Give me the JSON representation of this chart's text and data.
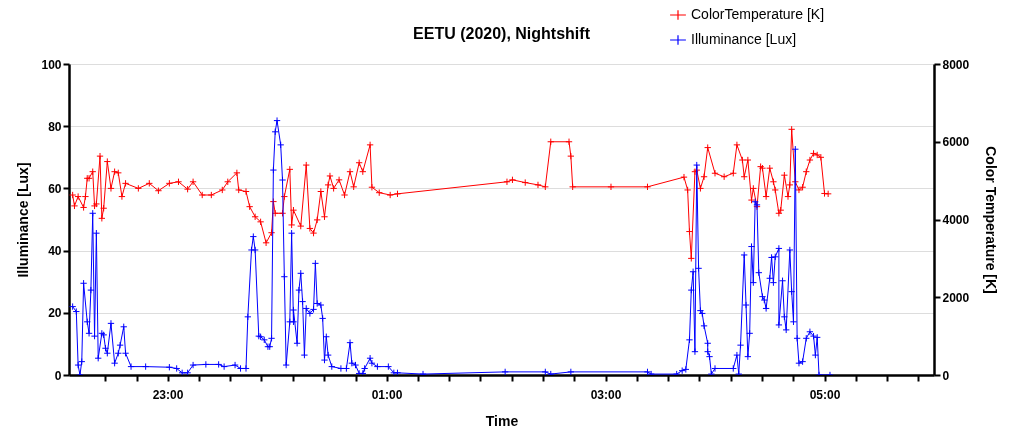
{
  "chart_data": {
    "type": "line",
    "title": "EETU (2020), Nightshift",
    "xlabel": "Time",
    "ylabel": "Illuminance [Lux]",
    "y2label": "Color Temperature [K]",
    "xlim": [
      "2020-01-01T22:06",
      "2020-01-02T06:00"
    ],
    "xticks": [
      {
        "value": "2020-01-01T22:26",
        "label": null
      },
      {
        "value": "2020-01-01T22:43",
        "label": null
      },
      {
        "value": "2020-01-01T23:00",
        "label": "23:00"
      },
      {
        "value": "2020-01-01T23:17",
        "label": null
      },
      {
        "value": "2020-01-01T23:34",
        "label": null
      },
      {
        "value": "2020-01-01T23:51",
        "label": null
      },
      {
        "value": "2020-01-02T00:09",
        "label": null
      },
      {
        "value": "2020-01-02T00:26",
        "label": null
      },
      {
        "value": "2020-01-02T00:43",
        "label": null
      },
      {
        "value": "2020-01-02T01:00",
        "label": "01:00"
      },
      {
        "value": "2020-01-02T01:17",
        "label": null
      },
      {
        "value": "2020-01-02T01:34",
        "label": null
      },
      {
        "value": "2020-01-02T01:51",
        "label": null
      },
      {
        "value": "2020-01-02T02:09",
        "label": null
      },
      {
        "value": "2020-01-02T02:26",
        "label": null
      },
      {
        "value": "2020-01-02T02:43",
        "label": null
      },
      {
        "value": "2020-01-02T03:00",
        "label": "03:00"
      },
      {
        "value": "2020-01-02T03:17",
        "label": null
      },
      {
        "value": "2020-01-02T03:34",
        "label": null
      },
      {
        "value": "2020-01-02T03:51",
        "label": null
      },
      {
        "value": "2020-01-02T04:09",
        "label": null
      },
      {
        "value": "2020-01-02T04:26",
        "label": null
      },
      {
        "value": "2020-01-02T04:43",
        "label": null
      },
      {
        "value": "2020-01-02T05:00",
        "label": "05:00"
      },
      {
        "value": "2020-01-02T05:17",
        "label": null
      },
      {
        "value": "2020-01-02T05:34",
        "label": null
      },
      {
        "value": "2020-01-02T05:51",
        "label": null
      }
    ],
    "ylim": [
      0,
      100
    ],
    "yticks": [
      0,
      20,
      40,
      60,
      80,
      100
    ],
    "y2lim": [
      0,
      8000
    ],
    "y2ticks": [
      0,
      2000,
      4000,
      6000,
      8000
    ],
    "grid": "y",
    "legend": "top right",
    "marker": "cross",
    "line_style": "solid",
    "series": [
      {
        "name": "ColorTemperature [K]",
        "color": "#ff0000",
        "axis": "y2",
        "x": [
          "2020-01-01T22:08",
          "2020-01-01T22:09",
          "2020-01-01T22:11",
          "2020-01-01T22:14",
          "2020-01-01T22:15",
          "2020-01-01T22:16",
          "2020-01-01T22:17",
          "2020-01-01T22:19",
          "2020-01-01T22:20",
          "2020-01-01T22:21",
          "2020-01-01T22:23",
          "2020-01-01T22:24",
          "2020-01-01T22:25",
          "2020-01-01T22:27",
          "2020-01-01T22:29",
          "2020-01-01T22:31",
          "2020-01-01T22:33",
          "2020-01-01T22:35",
          "2020-01-01T22:37",
          "2020-01-01T22:44",
          "2020-01-01T22:50",
          "2020-01-01T22:55",
          "2020-01-01T23:01",
          "2020-01-01T23:06",
          "2020-01-01T23:11",
          "2020-01-01T23:14",
          "2020-01-01T23:19",
          "2020-01-01T23:24",
          "2020-01-01T23:30",
          "2020-01-01T23:33",
          "2020-01-01T23:38",
          "2020-01-01T23:39",
          "2020-01-01T23:43",
          "2020-01-01T23:45",
          "2020-01-01T23:48",
          "2020-01-01T23:51",
          "2020-01-01T23:54",
          "2020-01-01T23:57",
          "2020-01-01T23:58",
          "2020-01-01T23:59",
          "2020-01-02T00:03",
          "2020-01-02T00:04",
          "2020-01-02T00:07",
          "2020-01-02T00:08",
          "2020-01-02T00:09",
          "2020-01-02T00:13",
          "2020-01-02T00:16",
          "2020-01-02T00:18",
          "2020-01-02T00:20",
          "2020-01-02T00:22",
          "2020-01-02T00:24",
          "2020-01-02T00:26",
          "2020-01-02T00:28",
          "2020-01-02T00:29",
          "2020-01-02T00:31",
          "2020-01-02T00:34",
          "2020-01-02T00:37",
          "2020-01-02T00:40",
          "2020-01-02T00:42",
          "2020-01-02T00:45",
          "2020-01-02T00:47",
          "2020-01-02T00:51",
          "2020-01-02T00:52",
          "2020-01-02T00:56",
          "2020-01-02T01:02",
          "2020-01-02T01:06",
          "2020-01-02T02:06",
          "2020-01-02T02:09",
          "2020-01-02T02:16",
          "2020-01-02T02:23",
          "2020-01-02T02:27",
          "2020-01-02T02:30",
          "2020-01-02T02:40",
          "2020-01-02T02:41",
          "2020-01-02T02:42",
          "2020-01-02T03:03",
          "2020-01-02T03:23",
          "2020-01-02T03:43",
          "2020-01-02T03:45",
          "2020-01-02T03:46",
          "2020-01-02T03:47",
          "2020-01-02T03:49",
          "2020-01-02T03:50",
          "2020-01-02T03:52",
          "2020-01-02T03:54",
          "2020-01-02T03:56",
          "2020-01-02T04:00",
          "2020-01-02T04:05",
          "2020-01-02T04:10",
          "2020-01-02T04:12",
          "2020-01-02T04:15",
          "2020-01-02T04:16",
          "2020-01-02T04:18",
          "2020-01-02T04:20",
          "2020-01-02T04:21",
          "2020-01-02T04:23",
          "2020-01-02T04:25",
          "2020-01-02T04:26",
          "2020-01-02T04:28",
          "2020-01-02T04:30",
          "2020-01-02T04:32",
          "2020-01-02T04:33",
          "2020-01-02T04:35",
          "2020-01-02T04:36",
          "2020-01-02T04:38",
          "2020-01-02T04:40",
          "2020-01-02T04:41",
          "2020-01-02T04:42",
          "2020-01-02T04:44",
          "2020-01-02T04:46",
          "2020-01-02T04:48",
          "2020-01-02T04:50",
          "2020-01-02T04:52",
          "2020-01-02T04:54",
          "2020-01-02T04:56",
          "2020-01-02T04:58",
          "2020-01-02T05:00",
          "2020-01-02T05:02"
        ],
        "values": [
          4630,
          4350,
          4590,
          4310,
          4590,
          5060,
          5060,
          5230,
          4350,
          4400,
          5630,
          4030,
          4290,
          5490,
          4800,
          5230,
          5200,
          4590,
          4930,
          4800,
          4930,
          4740,
          4930,
          4970,
          4780,
          4970,
          4630,
          4630,
          4760,
          4970,
          5200,
          4760,
          4720,
          4330,
          4070,
          3940,
          3400,
          3660,
          4460,
          4160,
          4160,
          4590,
          5290,
          3860,
          4240,
          3830,
          5400,
          3770,
          3650,
          3990,
          4720,
          4070,
          4890,
          5120,
          4800,
          5020,
          4630,
          5230,
          4840,
          5460,
          5230,
          5920,
          4830,
          4690,
          4630,
          4660,
          4970,
          5020,
          4950,
          4890,
          4840,
          6000,
          6000,
          5630,
          4840,
          4840,
          4840,
          5090,
          4760,
          3690,
          3000,
          5230,
          5270,
          4800,
          5100,
          5850,
          5190,
          5100,
          5190,
          5920,
          5530,
          5100,
          5530,
          4500,
          4800,
          4330,
          5360,
          5320,
          4590,
          5320,
          4970,
          4760,
          4160,
          4240,
          5140,
          4590,
          4890,
          6320,
          4970,
          4760,
          4830,
          5230,
          5530,
          5700,
          5660,
          5600,
          4670,
          4660
        ]
      },
      {
        "name": "Illuminance [Lux]",
        "color": "#0000ff",
        "x": [
          "2020-01-01T22:08",
          "2020-01-01T22:10",
          "2020-01-01T22:11",
          "2020-01-01T22:12",
          "2020-01-01T22:13",
          "2020-01-01T22:14",
          "2020-01-01T22:16",
          "2020-01-01T22:17",
          "2020-01-01T22:18",
          "2020-01-01T22:19",
          "2020-01-01T22:20",
          "2020-01-01T22:21",
          "2020-01-01T22:22",
          "2020-01-01T22:24",
          "2020-01-01T22:25",
          "2020-01-01T22:26",
          "2020-01-01T22:27",
          "2020-01-01T22:29",
          "2020-01-01T22:31",
          "2020-01-01T22:33",
          "2020-01-01T22:34",
          "2020-01-01T22:36",
          "2020-01-01T22:37",
          "2020-01-01T22:40",
          "2020-01-01T22:48",
          "2020-01-01T23:01",
          "2020-01-01T23:05",
          "2020-01-01T23:08",
          "2020-01-01T23:11",
          "2020-01-01T23:14",
          "2020-01-01T23:21",
          "2020-01-01T23:28",
          "2020-01-01T23:31",
          "2020-01-01T23:37",
          "2020-01-01T23:40",
          "2020-01-01T23:43",
          "2020-01-01T23:44",
          "2020-01-01T23:46",
          "2020-01-01T23:47",
          "2020-01-01T23:48",
          "2020-01-01T23:50",
          "2020-01-01T23:51",
          "2020-01-01T23:53",
          "2020-01-01T23:55",
          "2020-01-01T23:56",
          "2020-01-01T23:57",
          "2020-01-01T23:58",
          "2020-01-01T23:59",
          "2020-01-02T00:00",
          "2020-01-02T00:02",
          "2020-01-02T00:03",
          "2020-01-02T00:04",
          "2020-01-02T00:05",
          "2020-01-02T00:07",
          "2020-01-02T00:08",
          "2020-01-02T00:09",
          "2020-01-02T00:09",
          "2020-01-02T00:11",
          "2020-01-02T00:12",
          "2020-01-02T00:13",
          "2020-01-02T00:14",
          "2020-01-02T00:15",
          "2020-01-02T00:16",
          "2020-01-02T00:18",
          "2020-01-02T00:20",
          "2020-01-02T00:21",
          "2020-01-02T00:22",
          "2020-01-02T00:24",
          "2020-01-02T00:25",
          "2020-01-02T00:26",
          "2020-01-02T00:27",
          "2020-01-02T00:28",
          "2020-01-02T00:30",
          "2020-01-02T00:35",
          "2020-01-02T00:38",
          "2020-01-02T00:40",
          "2020-01-02T00:41",
          "2020-01-02T00:43",
          "2020-01-02T00:45",
          "2020-01-02T00:47",
          "2020-01-02T00:48",
          "2020-01-02T00:51",
          "2020-01-02T00:52",
          "2020-01-02T00:55",
          "2020-01-02T01:01",
          "2020-01-02T01:04",
          "2020-01-02T01:06",
          "2020-01-02T01:20",
          "2020-01-02T02:05",
          "2020-01-02T02:27",
          "2020-01-02T02:30",
          "2020-01-02T02:41",
          "2020-01-02T03:23",
          "2020-01-02T03:25",
          "2020-01-02T03:39",
          "2020-01-02T03:42",
          "2020-01-02T03:44",
          "2020-01-02T03:46",
          "2020-01-02T03:47",
          "2020-01-02T03:48",
          "2020-01-02T03:49",
          "2020-01-02T03:50",
          "2020-01-02T03:51",
          "2020-01-02T03:52",
          "2020-01-02T03:53",
          "2020-01-02T03:54",
          "2020-01-02T03:56",
          "2020-01-02T03:56",
          "2020-01-02T03:57",
          "2020-01-02T03:58",
          "2020-01-02T04:00",
          "2020-01-02T04:10",
          "2020-01-02T04:12",
          "2020-01-02T04:13",
          "2020-01-02T04:14",
          "2020-01-02T04:16",
          "2020-01-02T04:17",
          "2020-01-02T04:18",
          "2020-01-02T04:19",
          "2020-01-02T04:20",
          "2020-01-02T04:21",
          "2020-01-02T04:22",
          "2020-01-02T04:23",
          "2020-01-02T04:24",
          "2020-01-02T04:26",
          "2020-01-02T04:27",
          "2020-01-02T04:28",
          "2020-01-02T04:30",
          "2020-01-02T04:31",
          "2020-01-02T04:32",
          "2020-01-02T04:33",
          "2020-01-02T04:35",
          "2020-01-02T04:35",
          "2020-01-02T04:37",
          "2020-01-02T04:38",
          "2020-01-02T04:39",
          "2020-01-02T04:41",
          "2020-01-02T04:42",
          "2020-01-02T04:43",
          "2020-01-02T04:44",
          "2020-01-02T04:45",
          "2020-01-02T04:46",
          "2020-01-02T04:48",
          "2020-01-02T04:50",
          "2020-01-02T04:52",
          "2020-01-02T04:54",
          "2020-01-02T04:55",
          "2020-01-02T04:56",
          "2020-01-02T04:57",
          "2020-01-02T05:03"
        ],
        "values": [
          22.0,
          20.4,
          3.2,
          0,
          4.3,
          29.5,
          17.1,
          13.4,
          27.3,
          52.0,
          12.5,
          45.6,
          5.4,
          13.4,
          12.9,
          8.6,
          7.0,
          16.6,
          3.8,
          7.0,
          9.6,
          15.5,
          7.0,
          2.7,
          2.7,
          2.5,
          2.1,
          0.7,
          0.7,
          3.2,
          3.4,
          3.4,
          2.7,
          3.2,
          2.1,
          2.1,
          18.7,
          40.2,
          44.5,
          40.2,
          12.5,
          12.3,
          11.3,
          9.1,
          9.1,
          11.8,
          65.9,
          78.2,
          81.8,
          74.0,
          62.7,
          31.6,
          3.2,
          17.1,
          45.6,
          17.1,
          20.9,
          10.2,
          27.3,
          32.7,
          23.6,
          6.4,
          21.4,
          19.8,
          21.1,
          35.9,
          23.0,
          22.5,
          18.2,
          4.8,
          12.3,
          6.4,
          2.7,
          2.1,
          2.1,
          10.4,
          3.8,
          3.2,
          0.5,
          0.5,
          2.1,
          5.4,
          3.8,
          2.7,
          2.7,
          0.7,
          0.7,
          0.3,
          1.0,
          1.0,
          0.3,
          1.0,
          1.0,
          0.3,
          0.3,
          1.4,
          1.8,
          11.3,
          27.3,
          33.2,
          7.5,
          67.5,
          34.3,
          20.7,
          19.8,
          15.8,
          10.2,
          7.5,
          5.9,
          0.3,
          2.1,
          2.1,
          6.4,
          0.3,
          9.6,
          38.6,
          22.5,
          5.9,
          13.4,
          41.3,
          29.7,
          55.7,
          54.7,
          32.9,
          25.2,
          24.1,
          21.4,
          31.1,
          37.8,
          29.7,
          38.0,
          40.7,
          16.1,
          30.3,
          18.7,
          14.5,
          40.2,
          26.8,
          17.1,
          72.6,
          11.8,
          3.8,
          4.3,
          11.8,
          13.9,
          12.5,
          6.4,
          12.1,
          0,
          0
        ]
      }
    ]
  }
}
